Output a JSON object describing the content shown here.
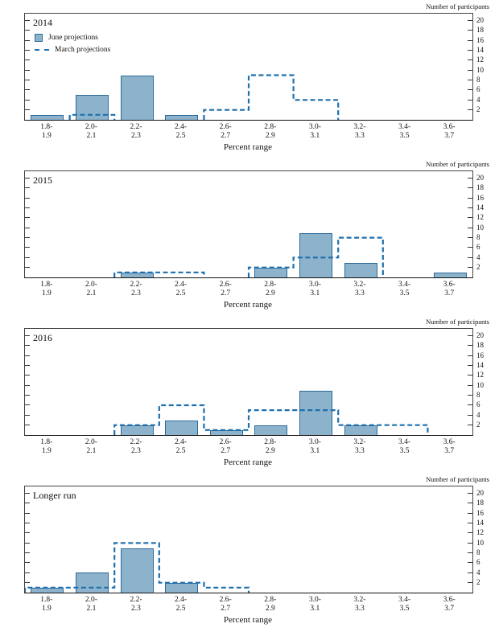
{
  "figure": {
    "y_axis_label": "Number of participants",
    "x_axis_label": "Percent range",
    "legend": {
      "june_label": "June projections",
      "march_label": "March projections"
    },
    "colors": {
      "bar_fill": "#8db3cc",
      "bar_border": "#2b6a99",
      "dash_line": "#1d6fae",
      "axis": "#333333"
    }
  },
  "chart_data": [
    {
      "type": "bar",
      "title": "2014",
      "categories": [
        "1.8-1.9",
        "2.0-2.1",
        "2.2-2.3",
        "2.4-2.5",
        "2.6-2.7",
        "2.8-2.9",
        "3.0-3.1",
        "3.2-3.3",
        "3.4-3.5",
        "3.6-3.7"
      ],
      "series": [
        {
          "name": "June projections",
          "style": "filled-bar",
          "values": [
            1,
            5,
            9,
            1,
            0,
            0,
            0,
            0,
            0,
            0
          ]
        },
        {
          "name": "March projections",
          "style": "dashed-step",
          "values": [
            0,
            1,
            0,
            0,
            2,
            9,
            4,
            0,
            0,
            0
          ]
        }
      ],
      "xlabel": "Percent range",
      "ylabel": "Number of participants",
      "ylim": [
        0,
        21
      ],
      "yticks": [
        2,
        4,
        6,
        8,
        10,
        12,
        14,
        16,
        18,
        20
      ],
      "legend_position": "top-left",
      "grid": false
    },
    {
      "type": "bar",
      "title": "2015",
      "categories": [
        "1.8-1.9",
        "2.0-2.1",
        "2.2-2.3",
        "2.4-2.5",
        "2.6-2.7",
        "2.8-2.9",
        "3.0-3.1",
        "3.2-3.3",
        "3.4-3.5",
        "3.6-3.7"
      ],
      "series": [
        {
          "name": "June projections",
          "style": "filled-bar",
          "values": [
            0,
            0,
            1,
            0,
            0,
            2,
            9,
            3,
            0,
            1
          ]
        },
        {
          "name": "March projections",
          "style": "dashed-step",
          "values": [
            0,
            0,
            1,
            1,
            0,
            2,
            4,
            8,
            0,
            0
          ]
        }
      ],
      "xlabel": "Percent range",
      "ylabel": "Number of participants",
      "ylim": [
        0,
        21
      ],
      "yticks": [
        2,
        4,
        6,
        8,
        10,
        12,
        14,
        16,
        18,
        20
      ],
      "legend_position": "none",
      "grid": false
    },
    {
      "type": "bar",
      "title": "2016",
      "categories": [
        "1.8-1.9",
        "2.0-2.1",
        "2.2-2.3",
        "2.4-2.5",
        "2.6-2.7",
        "2.8-2.9",
        "3.0-3.1",
        "3.2-3.3",
        "3.4-3.5",
        "3.6-3.7"
      ],
      "series": [
        {
          "name": "June projections",
          "style": "filled-bar",
          "values": [
            0,
            0,
            2,
            3,
            1,
            2,
            9,
            2,
            0,
            0
          ]
        },
        {
          "name": "March projections",
          "style": "dashed-step",
          "values": [
            0,
            0,
            2,
            6,
            1,
            5,
            5,
            2,
            2,
            0
          ]
        }
      ],
      "xlabel": "Percent range",
      "ylabel": "Number of participants",
      "ylim": [
        0,
        21
      ],
      "yticks": [
        2,
        4,
        6,
        8,
        10,
        12,
        14,
        16,
        18,
        20
      ],
      "legend_position": "none",
      "grid": false
    },
    {
      "type": "bar",
      "title": "Longer run",
      "categories": [
        "1.8-1.9",
        "2.0-2.1",
        "2.2-2.3",
        "2.4-2.5",
        "2.6-2.7",
        "2.8-2.9",
        "3.0-3.1",
        "3.2-3.3",
        "3.4-3.5",
        "3.6-3.7"
      ],
      "series": [
        {
          "name": "June projections",
          "style": "filled-bar",
          "values": [
            1,
            4,
            9,
            2,
            0,
            0,
            0,
            0,
            0,
            0
          ]
        },
        {
          "name": "March projections",
          "style": "dashed-step",
          "values": [
            1,
            1,
            10,
            2,
            1,
            0,
            0,
            0,
            0,
            0
          ]
        }
      ],
      "xlabel": "Percent range",
      "ylabel": "Number of participants",
      "ylim": [
        0,
        21
      ],
      "yticks": [
        2,
        4,
        6,
        8,
        10,
        12,
        14,
        16,
        18,
        20
      ],
      "legend_position": "none",
      "grid": false
    }
  ]
}
